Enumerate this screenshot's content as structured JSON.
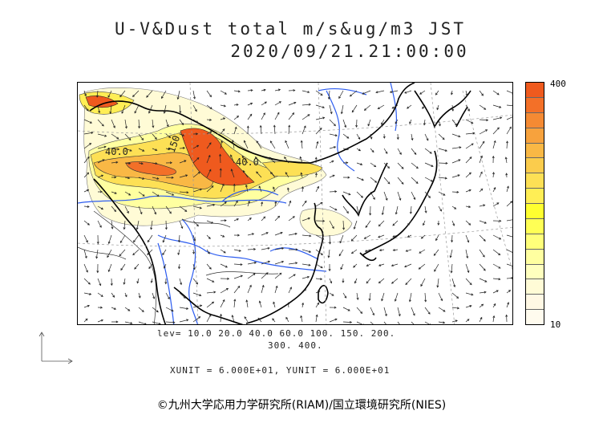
{
  "header": {
    "title": "U-V&Dust total m/s&ug/m3 JST",
    "datetime": "2020/09/21.21:00:00"
  },
  "map": {
    "contour_labels": [
      "40.0",
      "150",
      "40.0"
    ]
  },
  "colorbar": {
    "max_label": "400",
    "min_label": "10",
    "colors": [
      "#ef5a1e",
      "#f37028",
      "#f58a33",
      "#f7a23d",
      "#f9b845",
      "#fbcc4c",
      "#fde055",
      "#ffee55",
      "#ffff30",
      "#ffff55",
      "#ffff7a",
      "#ffffa0",
      "#ffffbe",
      "#fffbd6",
      "#fff8e4",
      "#fffbee"
    ]
  },
  "levels": {
    "line1": "lev= 10.0 20.0 40.0 60.0 100. 150. 200.",
    "line2": "300. 400."
  },
  "units": {
    "text": "XUNIT = 6.000E+01, YUNIT = 6.000E+01"
  },
  "credit": {
    "text": "©九州大学応用力学研究所(RIAM)/国立環境研究所(NIES)"
  }
}
